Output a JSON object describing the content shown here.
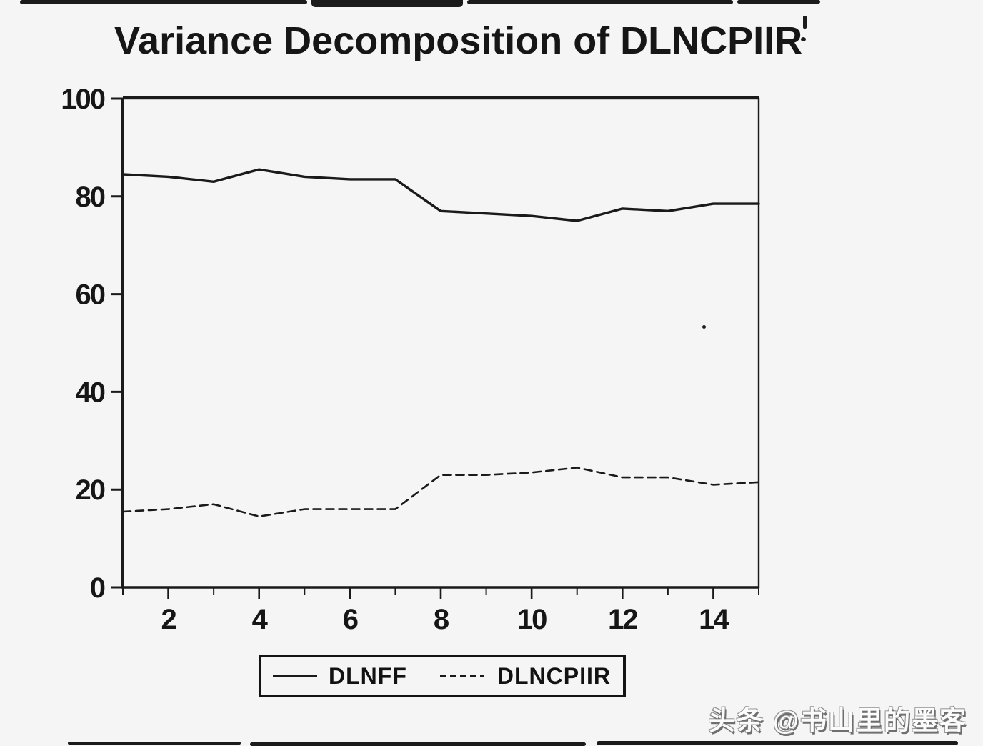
{
  "watermark": {
    "text": "头条 @书山里的墨客"
  },
  "chart_data": {
    "type": "line",
    "title": "Variance Decomposition of DLNCPIIR",
    "xlabel": "",
    "ylabel": "",
    "x": [
      1,
      2,
      3,
      4,
      5,
      6,
      7,
      8,
      9,
      10,
      11,
      12,
      13,
      14,
      15
    ],
    "series": [
      {
        "name": "DLNFF",
        "line_style": "solid",
        "values": [
          84.5,
          84,
          83,
          85.5,
          84,
          83.5,
          83.5,
          77,
          76.5,
          76,
          75,
          77.5,
          77,
          78.5,
          78.5
        ]
      },
      {
        "name": "DLNCPIIR",
        "line_style": "dashed",
        "values": [
          15.5,
          16,
          17,
          14.5,
          16,
          16,
          16,
          23,
          23,
          23.5,
          24.5,
          22.5,
          22.5,
          21,
          21.5
        ]
      }
    ],
    "xlim": [
      1,
      15
    ],
    "ylim": [
      0,
      100
    ],
    "yticks": [
      0,
      20,
      40,
      60,
      80,
      100
    ],
    "xticks_labeled": [
      2,
      4,
      6,
      8,
      10,
      12,
      14
    ],
    "xticks_minor": [
      1,
      2,
      3,
      4,
      5,
      6,
      7,
      8,
      9,
      10,
      11,
      12,
      13,
      14,
      15
    ],
    "grid": false,
    "legend_position": "bottom-center",
    "line_color": "#1a1a1a",
    "label_color": "#161616"
  }
}
